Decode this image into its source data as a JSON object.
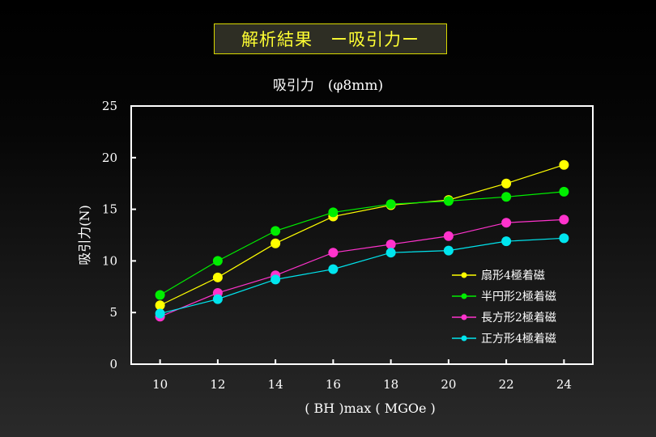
{
  "header": {
    "title": "解析結果　ー吸引力ー"
  },
  "chart_data": {
    "type": "line",
    "title": "吸引力　(φ8mm)",
    "xlabel": "( BH )max ( MGOe )",
    "ylabel": "吸引力(N)",
    "x": [
      10,
      12,
      14,
      16,
      18,
      20,
      22,
      24
    ],
    "xlim": [
      9,
      25
    ],
    "ylim": [
      0,
      25
    ],
    "xticks": [
      "10",
      "12",
      "14",
      "16",
      "18",
      "20",
      "22",
      "24"
    ],
    "yticks": [
      "0",
      "5",
      "10",
      "15",
      "20",
      "25"
    ],
    "grid": false,
    "legend_position": "bottom-right",
    "series": [
      {
        "name": "扇形4極着磁",
        "color": "#ffff00",
        "values": [
          5.7,
          8.4,
          11.7,
          14.3,
          15.4,
          15.9,
          17.5,
          19.3
        ]
      },
      {
        "name": "半円形2極着磁",
        "color": "#00ee00",
        "values": [
          6.7,
          10.0,
          12.9,
          14.7,
          15.5,
          15.8,
          16.2,
          16.7
        ]
      },
      {
        "name": "長方形2極着磁",
        "color": "#ff33cc",
        "values": [
          4.6,
          6.9,
          8.6,
          10.8,
          11.6,
          12.4,
          13.7,
          14.0
        ]
      },
      {
        "name": "正方形4極着磁",
        "color": "#00e5ee",
        "values": [
          4.9,
          6.3,
          8.2,
          9.2,
          10.8,
          11.0,
          11.9,
          12.2
        ]
      }
    ]
  }
}
